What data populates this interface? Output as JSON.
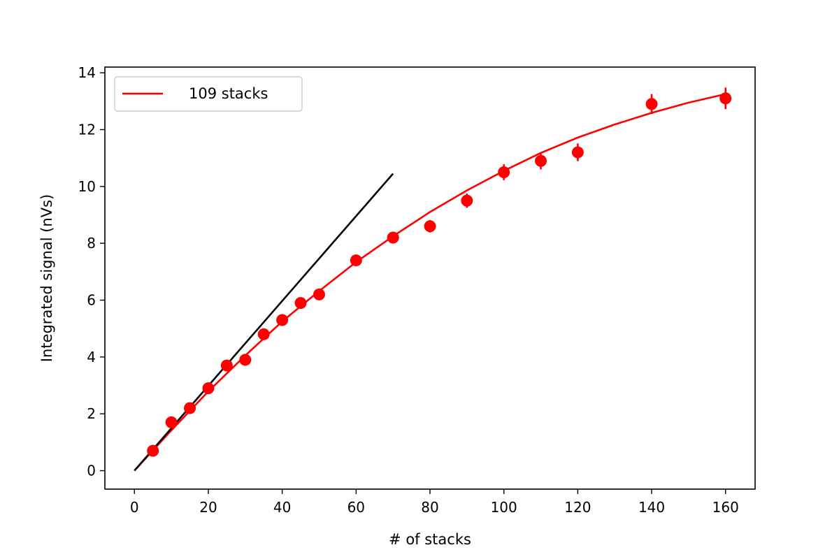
{
  "chart_data": {
    "type": "scatter",
    "xlabel": "# of stacks",
    "ylabel": "Integrated signal (nVs)",
    "xlim": [
      -8,
      168
    ],
    "ylim": [
      -0.65,
      14.2
    ],
    "x_ticks": [
      0,
      20,
      40,
      60,
      80,
      100,
      120,
      140,
      160
    ],
    "y_ticks": [
      0,
      2,
      4,
      6,
      8,
      10,
      12,
      14
    ],
    "grid": false,
    "legend": {
      "position": "top-left",
      "entries": [
        "109 stacks"
      ]
    },
    "series": [
      {
        "kind": "points",
        "color": "#ff0000",
        "x": [
          5,
          10,
          15,
          20,
          25,
          30,
          35,
          40,
          45,
          50,
          60,
          70,
          80,
          90,
          100,
          110,
          120,
          140,
          160
        ],
        "y": [
          0.7,
          1.7,
          2.2,
          2.9,
          3.7,
          3.9,
          4.8,
          5.3,
          5.9,
          6.2,
          7.4,
          8.2,
          8.6,
          9.5,
          10.5,
          10.9,
          11.2,
          12.9,
          13.1
        ],
        "yerr": [
          0.08,
          0.1,
          0.1,
          0.12,
          0.14,
          0.14,
          0.15,
          0.16,
          0.17,
          0.17,
          0.19,
          0.21,
          0.22,
          0.25,
          0.28,
          0.3,
          0.31,
          0.35,
          0.38
        ]
      },
      {
        "name": "109 stacks",
        "kind": "fit-line",
        "color": "#ff0000",
        "x": [
          0,
          10,
          20,
          30,
          40,
          50,
          60,
          70,
          80,
          90,
          100,
          110,
          120,
          130,
          140,
          150,
          160
        ],
        "y": [
          0,
          1.42,
          2.79,
          4.05,
          5.25,
          6.32,
          7.34,
          8.25,
          9.1,
          9.86,
          10.55,
          11.18,
          11.72,
          12.18,
          12.59,
          12.95,
          13.25
        ]
      },
      {
        "kind": "reference-line",
        "color": "#000000",
        "x": [
          0,
          70
        ],
        "y": [
          0,
          10.45
        ]
      }
    ]
  }
}
